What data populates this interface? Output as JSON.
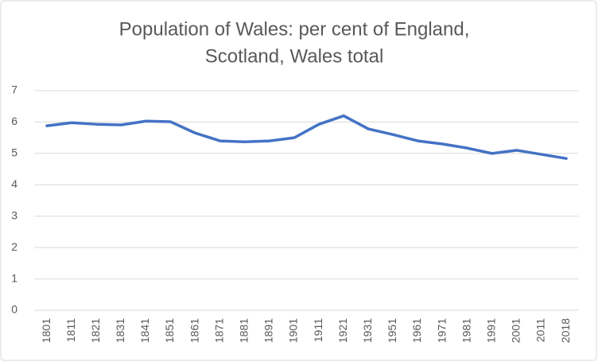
{
  "chart_data": {
    "type": "line",
    "title_lines": [
      "Population of Wales: per cent of England,",
      "Scotland, Wales total"
    ],
    "categories": [
      "1801",
      "1811",
      "1821",
      "1831",
      "1841",
      "1851",
      "1861",
      "1871",
      "1881",
      "1891",
      "1901",
      "1911",
      "1921",
      "1931",
      "1951",
      "1961",
      "1971",
      "1981",
      "1991",
      "2001",
      "2011",
      "2018"
    ],
    "values": [
      5.88,
      5.98,
      5.93,
      5.91,
      6.03,
      6.01,
      5.65,
      5.4,
      5.37,
      5.4,
      5.5,
      5.93,
      6.2,
      5.78,
      5.6,
      5.4,
      5.3,
      5.17,
      5.0,
      5.1,
      4.97,
      4.84
    ],
    "color": "#4472c4",
    "ylim": [
      0,
      7
    ],
    "yticks": [
      0,
      1,
      2,
      3,
      4,
      5,
      6,
      7
    ],
    "grid": true
  }
}
